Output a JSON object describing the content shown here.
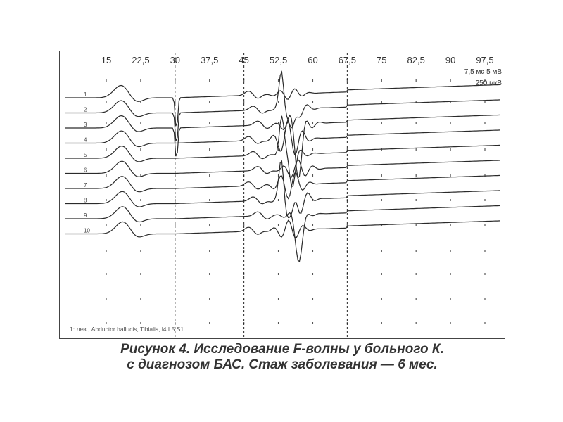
{
  "chart_data": {
    "type": "line",
    "x_ticks": [
      "15",
      "22,5",
      "30",
      "37,5",
      "45",
      "52,5",
      "60",
      "67,5",
      "75",
      "82,5",
      "90",
      "97,5"
    ],
    "x_tick_values": [
      15,
      22.5,
      30,
      37.5,
      45,
      52.5,
      60,
      67.5,
      75,
      82.5,
      90,
      97.5
    ],
    "xlim": [
      5,
      101
    ],
    "scale_labels": [
      "7,5 мс  5 мВ",
      "250 мкВ"
    ],
    "cursors_x": [
      30,
      45,
      67.5
    ],
    "trace_labels": [
      "1",
      "2",
      "3",
      "4",
      "5",
      "6",
      "7",
      "8",
      "9",
      "10"
    ],
    "series_count": 10,
    "grid": "dotted-markers",
    "footnote": "1: лев., Abductor hallucis, Tibialis, l4 L5 S1"
  },
  "caption": {
    "line1": "Рисунок 4. Исследование F-волны у больного К.",
    "line2": "с диагнозом БАС. Стаж заболевания — 6 мес."
  }
}
